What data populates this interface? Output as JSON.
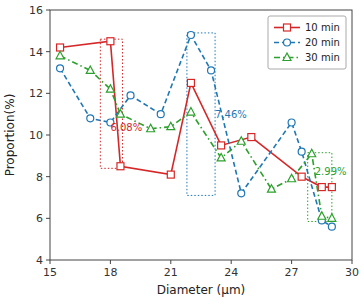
{
  "chart_data": {
    "type": "line",
    "x_label": "Diameter (μm)",
    "y_label": "Proportion(%)",
    "series": [
      {
        "name": "10 min",
        "color": "#d62728",
        "marker": "square",
        "line_style": "solid",
        "x": [
          15.5,
          18,
          18.5,
          21,
          22,
          23.5,
          25,
          27.5,
          28.5,
          29
        ],
        "values": [
          14.2,
          14.5,
          8.5,
          8.1,
          12.5,
          9.5,
          9.9,
          8.0,
          7.5,
          7.5
        ]
      },
      {
        "name": "20 min",
        "color": "#1f77b4",
        "marker": "circle",
        "line_style": "dashed",
        "x": [
          15.5,
          17,
          18,
          19,
          20.5,
          22,
          23,
          24.5,
          27,
          27.5,
          28.5,
          29
        ],
        "values": [
          13.2,
          10.8,
          10.6,
          11.9,
          11.0,
          14.8,
          13.1,
          7.2,
          10.6,
          9.2,
          5.9,
          5.6
        ]
      },
      {
        "name": "30 min",
        "color": "#2ca02c",
        "marker": "triangle",
        "line_style": "dashdot",
        "x": [
          15.5,
          17,
          18,
          18.5,
          20,
          21,
          22,
          23.5,
          24.5,
          26,
          27,
          28,
          28.5,
          29
        ],
        "values": [
          13.8,
          13.1,
          12.2,
          11.0,
          10.3,
          10.4,
          11.1,
          8.9,
          9.7,
          7.4,
          7.9,
          9.1,
          6.1,
          6.0
        ]
      }
    ],
    "boxes": [
      {
        "x": 17.5,
        "y": 8.4,
        "width": 1.1,
        "height": 6.2,
        "color": "#d62728"
      },
      {
        "x": 21.8,
        "y": 7.1,
        "width": 1.4,
        "height": 7.8,
        "color": "#1f77b4"
      },
      {
        "x": 27.8,
        "y": 5.85,
        "width": 1.2,
        "height": 3.3,
        "color": "#2ca02c"
      }
    ],
    "annotations": [
      {
        "text": "6.08%",
        "x": 18.0,
        "y": 10.2,
        "color": "#d62728"
      },
      {
        "text": "7.46%",
        "x": 23.2,
        "y": 10.8,
        "color": "#1f77b4"
      },
      {
        "text": "2.99%",
        "x": 28.15,
        "y": 8.1,
        "color": "#2ca02c"
      }
    ],
    "xlim": [
      15,
      30
    ],
    "ylim": [
      4,
      16
    ],
    "xticks": [
      15,
      18,
      21,
      24,
      27,
      30
    ],
    "yticks": [
      4,
      6,
      8,
      10,
      12,
      14,
      16
    ],
    "grid": false,
    "legend": "upper right"
  }
}
